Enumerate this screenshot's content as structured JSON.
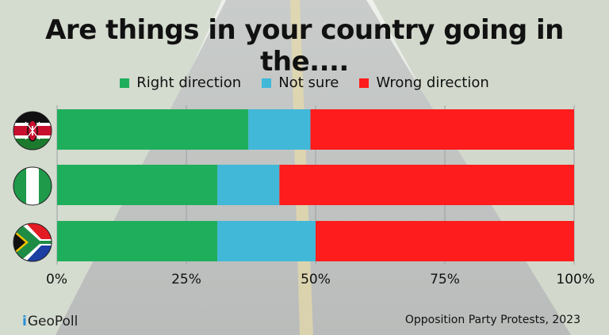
{
  "title": "Are things in your country going in the....",
  "source": "Opposition Party Protests, 2023",
  "brand": {
    "mark": "i",
    "name": "GeoPoll"
  },
  "colors": {
    "right": "#1fae5b",
    "not_sure": "#41b8d8",
    "wrong": "#ff1c1c",
    "grid": "#9aa0a0"
  },
  "flags": [
    "kenya-flag",
    "nigeria-flag",
    "south-africa-flag"
  ],
  "chart_data": {
    "type": "bar",
    "orientation": "horizontal",
    "stacked": true,
    "categories": [
      "Kenya",
      "Nigeria",
      "South Africa"
    ],
    "series": [
      {
        "name": "Right direction",
        "values": [
          37,
          31,
          31
        ]
      },
      {
        "name": "Not sure",
        "values": [
          12,
          12,
          19
        ]
      },
      {
        "name": "Wrong direction",
        "values": [
          51,
          57,
          50
        ]
      }
    ],
    "xlim": [
      0,
      100
    ],
    "xticks": [
      "0%",
      "25%",
      "50%",
      "75%",
      "100%"
    ],
    "grid": true,
    "legend": "top-center"
  }
}
